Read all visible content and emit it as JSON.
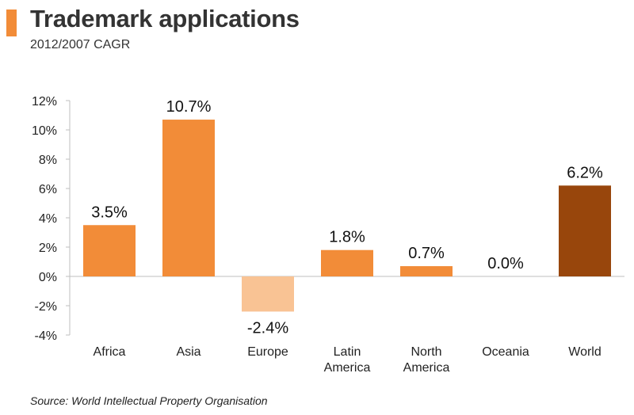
{
  "header": {
    "title": "Trademark applications",
    "subtitle": "2012/2007 CAGR"
  },
  "footer": {
    "source": "Source: World Intellectual Property Organisation"
  },
  "colors": {
    "accent": "#f28c38",
    "positive": "#f28c38",
    "negative": "#f9c394",
    "highlight": "#98460c"
  },
  "chart_data": {
    "type": "bar",
    "title": "Trademark applications",
    "subtitle": "2012/2007 CAGR",
    "categories": [
      [
        "Africa"
      ],
      [
        "Asia"
      ],
      [
        "Europe"
      ],
      [
        "Latin",
        "America"
      ],
      [
        "North",
        "America"
      ],
      [
        "Oceania"
      ],
      [
        "World"
      ]
    ],
    "values": [
      3.5,
      10.7,
      -2.4,
      1.8,
      0.7,
      0.0,
      6.2
    ],
    "data_labels": [
      "3.5%",
      "10.7%",
      "-2.4%",
      "1.8%",
      "0.7%",
      "0.0%",
      "6.2%"
    ],
    "bar_colors": [
      "#f28c38",
      "#f28c38",
      "#f9c394",
      "#f28c38",
      "#f28c38",
      "#f28c38",
      "#98460c"
    ],
    "ylim": [
      -4,
      12
    ],
    "yticks": [
      -4,
      -2,
      0,
      2,
      4,
      6,
      8,
      10,
      12
    ],
    "ytick_labels": [
      "-4%",
      "-2%",
      "0%",
      "2%",
      "4%",
      "6%",
      "8%",
      "10%",
      "12%"
    ],
    "grid": false,
    "legend": "none"
  }
}
